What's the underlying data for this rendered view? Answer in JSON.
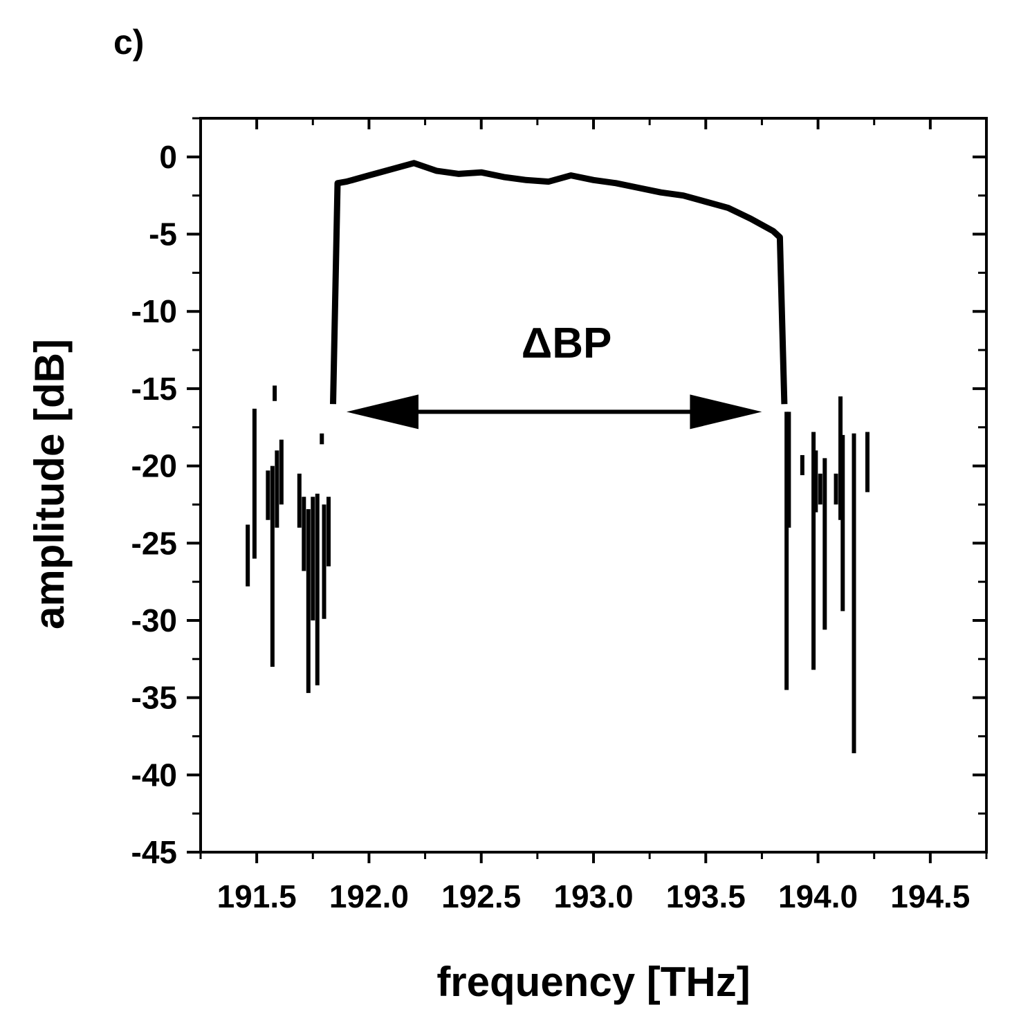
{
  "panel_label": "c)",
  "chart_data": {
    "type": "line",
    "xlabel": "frequency [THz]",
    "ylabel": "amplitude [dB]",
    "xlim": [
      191.25,
      194.75
    ],
    "ylim": [
      -45,
      2.5
    ],
    "x_ticks": [
      191.5,
      192.0,
      192.5,
      193.0,
      193.5,
      194.0,
      194.5
    ],
    "x_tick_labels": [
      "191.5",
      "192.0",
      "192.5",
      "193.0",
      "193.5",
      "194.0",
      "194.5"
    ],
    "y_ticks": [
      0,
      -5,
      -10,
      -15,
      -20,
      -25,
      -30,
      -35,
      -40,
      -45
    ],
    "y_tick_labels": [
      "0",
      "-5",
      "-10",
      "-15",
      "-20",
      "-25",
      "-30",
      "-35",
      "-40",
      "-45"
    ],
    "line_color": "#000000",
    "passband": {
      "x": [
        191.84,
        191.86,
        191.9,
        192.0,
        192.1,
        192.2,
        192.3,
        192.4,
        192.5,
        192.6,
        192.7,
        192.8,
        192.9,
        193.0,
        193.1,
        193.2,
        193.3,
        193.4,
        193.5,
        193.6,
        193.7,
        193.8,
        193.83,
        193.85
      ],
      "y": [
        -16,
        -1.7,
        -1.6,
        -1.2,
        -0.8,
        -0.4,
        -0.9,
        -1.1,
        -1.0,
        -1.3,
        -1.5,
        -1.6,
        -1.2,
        -1.5,
        -1.7,
        -2.0,
        -2.3,
        -2.5,
        -2.9,
        -3.3,
        -4.0,
        -4.8,
        -5.2,
        -16
      ]
    },
    "noise_spikes": [
      {
        "x": 191.46,
        "y_top": -23.8,
        "y_bottom": -27.8
      },
      {
        "x": 191.49,
        "y_top": -16.3,
        "y_bottom": -26.0
      },
      {
        "x": 191.55,
        "y_top": -20.3,
        "y_bottom": -23.5
      },
      {
        "x": 191.57,
        "y_top": -20.0,
        "y_bottom": -33.0
      },
      {
        "x": 191.58,
        "y_top": -14.8,
        "y_bottom": -15.8
      },
      {
        "x": 191.59,
        "y_top": -19.0,
        "y_bottom": -24.0
      },
      {
        "x": 191.61,
        "y_top": -18.3,
        "y_bottom": -22.5
      },
      {
        "x": 191.69,
        "y_top": -20.5,
        "y_bottom": -24.0
      },
      {
        "x": 191.71,
        "y_top": -22.0,
        "y_bottom": -26.8
      },
      {
        "x": 191.73,
        "y_top": -22.8,
        "y_bottom": -34.7
      },
      {
        "x": 191.75,
        "y_top": -22.0,
        "y_bottom": -30.0
      },
      {
        "x": 191.77,
        "y_top": -21.8,
        "y_bottom": -34.2
      },
      {
        "x": 191.79,
        "y_top": -17.9,
        "y_bottom": -18.6
      },
      {
        "x": 191.8,
        "y_top": -22.5,
        "y_bottom": -29.9
      },
      {
        "x": 191.82,
        "y_top": -22.0,
        "y_bottom": -26.5
      },
      {
        "x": 193.86,
        "y_top": -16.5,
        "y_bottom": -34.5
      },
      {
        "x": 193.87,
        "y_top": -16.5,
        "y_bottom": -24.0
      },
      {
        "x": 193.93,
        "y_top": -19.3,
        "y_bottom": -20.6
      },
      {
        "x": 193.98,
        "y_top": -17.8,
        "y_bottom": -33.2
      },
      {
        "x": 193.99,
        "y_top": -19.0,
        "y_bottom": -23.0
      },
      {
        "x": 194.01,
        "y_top": -20.5,
        "y_bottom": -22.5
      },
      {
        "x": 194.03,
        "y_top": -19.5,
        "y_bottom": -30.6
      },
      {
        "x": 194.08,
        "y_top": -20.5,
        "y_bottom": -22.5
      },
      {
        "x": 194.1,
        "y_top": -15.5,
        "y_bottom": -23.5
      },
      {
        "x": 194.11,
        "y_top": -18.0,
        "y_bottom": -29.4
      },
      {
        "x": 194.16,
        "y_top": -17.9,
        "y_bottom": -38.6
      },
      {
        "x": 194.22,
        "y_top": -17.8,
        "y_bottom": -21.7
      }
    ],
    "annotation": {
      "text": "ΔBP",
      "text_x": 192.88,
      "text_y": -12.0,
      "arrow_x1": 191.9,
      "arrow_x2": 193.75,
      "arrow_y": -16.5
    }
  }
}
